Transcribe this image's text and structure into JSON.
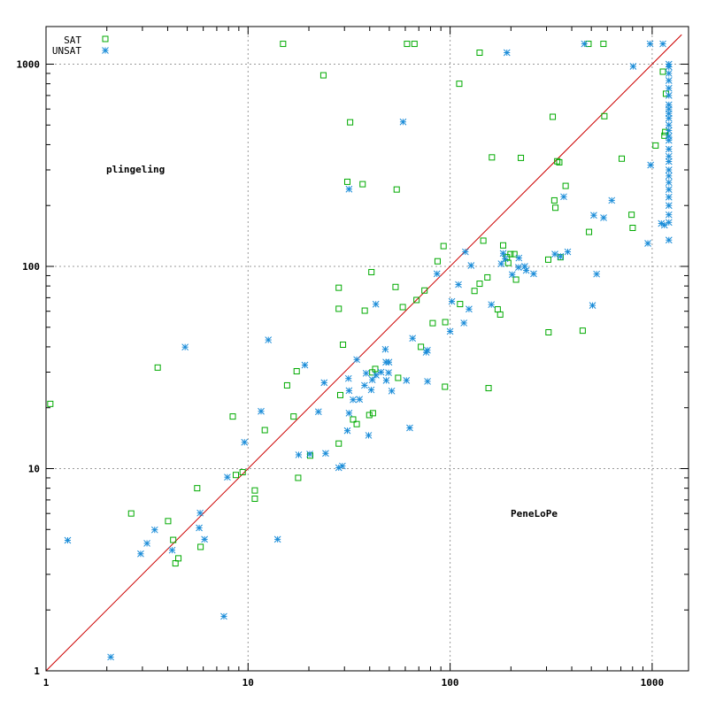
{
  "chart_data": {
    "type": "scatter",
    "title": "",
    "xlabel": "",
    "ylabel": "",
    "x_scale": "log",
    "y_scale": "log",
    "xlim": [
      1,
      1400
    ],
    "ylim": [
      1,
      1500
    ],
    "x_ticks": [
      {
        "value": 1,
        "label": "1"
      },
      {
        "value": 10,
        "label": "10"
      },
      {
        "value": 100,
        "label": "100"
      },
      {
        "value": 1000,
        "label": "1000"
      }
    ],
    "y_ticks": [
      {
        "value": 1,
        "label": "1"
      },
      {
        "value": 10,
        "label": "10"
      },
      {
        "value": 100,
        "label": "100"
      },
      {
        "value": 1000,
        "label": "1000"
      }
    ],
    "grid": true,
    "diagonal": {
      "color": "#cc0000"
    },
    "legend": {
      "position": "top-left"
    },
    "annotations": [
      {
        "text": "plingeling",
        "x": 3.1,
        "y": 290
      },
      {
        "text": "PeneLoPe",
        "x": 260,
        "y": 7.5
      }
    ],
    "series": [
      {
        "name": "SAT",
        "marker": "square",
        "color": "#00aa00",
        "points": [
          [
            1.05,
            20.9
          ],
          [
            2.64,
            6.0
          ],
          [
            3.57,
            31.6
          ],
          [
            4.02,
            5.5
          ],
          [
            4.26,
            4.44
          ],
          [
            4.37,
            3.4
          ],
          [
            4.52,
            3.6
          ],
          [
            5.6,
            8.0
          ],
          [
            5.82,
            4.1
          ],
          [
            8.4,
            18.1
          ],
          [
            8.7,
            9.3
          ],
          [
            9.4,
            9.6
          ],
          [
            10.8,
            7.8
          ],
          [
            10.8,
            7.1
          ],
          [
            12.1,
            15.5
          ],
          [
            15.6,
            25.8
          ],
          [
            16.8,
            18.1
          ],
          [
            17.7,
            9.0
          ],
          [
            17.4,
            30.3
          ],
          [
            20.3,
            11.6
          ],
          [
            28.1,
            61.7
          ],
          [
            28.1,
            78.4
          ],
          [
            28.1,
            13.3
          ],
          [
            28.6,
            23.1
          ],
          [
            29.5,
            41.0
          ],
          [
            31.0,
            262
          ],
          [
            32.0,
            516
          ],
          [
            33.1,
            17.5
          ],
          [
            34.5,
            16.6
          ],
          [
            36.9,
            255
          ],
          [
            37.8,
            60.4
          ],
          [
            39.8,
            18.4
          ],
          [
            40.8,
            93.7
          ],
          [
            41.5,
            18.8
          ],
          [
            42.6,
            31.1
          ],
          [
            41.2,
            29.9
          ],
          [
            53.7,
            79.1
          ],
          [
            54.4,
            240
          ],
          [
            55.3,
            28.1
          ],
          [
            58.3,
            62.9
          ],
          [
            68.2,
            68.2
          ],
          [
            71.7,
            40.0
          ],
          [
            74.7,
            76.0
          ],
          [
            82.0,
            52.4
          ],
          [
            86.7,
            106.0
          ],
          [
            92.8,
            126
          ],
          [
            94.3,
            25.4
          ],
          [
            94.6,
            53.0
          ],
          [
            112,
            65.1
          ],
          [
            111,
            800
          ],
          [
            132,
            75.6
          ],
          [
            140,
            82.1
          ],
          [
            146,
            134
          ],
          [
            153,
            88.2
          ],
          [
            155,
            25.0
          ],
          [
            161,
            346
          ],
          [
            172,
            61.3
          ],
          [
            177,
            57.8
          ],
          [
            183,
            127
          ],
          [
            191,
            111
          ],
          [
            194,
            104
          ],
          [
            199,
            115
          ],
          [
            208,
            115
          ],
          [
            212,
            86.0
          ],
          [
            224,
            344
          ],
          [
            306,
            108
          ],
          [
            307,
            47.2
          ],
          [
            322,
            549
          ],
          [
            328,
            212
          ],
          [
            332,
            195
          ],
          [
            339,
            331
          ],
          [
            347,
            327
          ],
          [
            352,
            111
          ],
          [
            373,
            250
          ],
          [
            453,
            48.1
          ],
          [
            487,
            148
          ],
          [
            580,
            553
          ],
          [
            707,
            341
          ],
          [
            791,
            180
          ],
          [
            801,
            155
          ],
          [
            1040,
            396
          ],
          [
            1130,
            918
          ],
          [
            1160,
            462
          ],
          [
            1170,
            714
          ],
          [
            1150,
            443
          ],
          [
            23.6,
            881
          ],
          [
            14.9,
            1260
          ],
          [
            61.2,
            1260
          ],
          [
            66.6,
            1260
          ],
          [
            140,
            1140
          ],
          [
            484,
            1260
          ],
          [
            574,
            1260
          ]
        ]
      },
      {
        "name": "UNSAT",
        "marker": "asterisk",
        "color": "#1a8cd8",
        "points": [
          [
            1.28,
            4.42
          ],
          [
            2.09,
            1.17
          ],
          [
            2.94,
            3.79
          ],
          [
            3.16,
            4.27
          ],
          [
            3.45,
            4.98
          ],
          [
            4.21,
            3.95
          ],
          [
            4.88,
            39.9
          ],
          [
            5.73,
            5.09
          ],
          [
            5.79,
            6.03
          ],
          [
            6.09,
            4.47
          ],
          [
            7.59,
            1.86
          ],
          [
            7.9,
            9.07
          ],
          [
            9.6,
            13.5
          ],
          [
            11.6,
            19.2
          ],
          [
            12.6,
            43.3
          ],
          [
            14.0,
            4.47
          ],
          [
            17.8,
            11.7
          ],
          [
            19.1,
            32.5
          ],
          [
            20.2,
            11.8
          ],
          [
            22.3,
            19.1
          ],
          [
            24.2,
            11.9
          ],
          [
            23.8,
            26.6
          ],
          [
            28.1,
            10.1
          ],
          [
            29.3,
            10.3
          ],
          [
            31.0,
            15.4
          ],
          [
            31.6,
            18.8
          ],
          [
            31.6,
            24.3
          ],
          [
            31.4,
            27.9
          ],
          [
            31.6,
            241
          ],
          [
            33.1,
            21.9
          ],
          [
            34.5,
            34.6
          ],
          [
            35.6,
            22.0
          ],
          [
            37.7,
            25.8
          ],
          [
            38.4,
            29.6
          ],
          [
            39.5,
            14.6
          ],
          [
            40.7,
            24.5
          ],
          [
            41.2,
            27.5
          ],
          [
            42.9,
            65.0
          ],
          [
            43.0,
            29.0
          ],
          [
            45.5,
            30.0
          ],
          [
            48.1,
            33.6
          ],
          [
            47.8,
            38.9
          ],
          [
            49.8,
            33.6
          ],
          [
            49.6,
            29.8
          ],
          [
            51.4,
            24.2
          ],
          [
            48.3,
            27.3
          ],
          [
            58.5,
            518
          ],
          [
            60.8,
            27.3
          ],
          [
            63.1,
            15.9
          ],
          [
            65.2,
            44.1
          ],
          [
            76.1,
            37.6
          ],
          [
            77.3,
            27.0
          ],
          [
            77.2,
            38.5
          ],
          [
            86.1,
            91.9
          ],
          [
            100,
            47.7
          ],
          [
            102,
            67.1
          ],
          [
            110,
            81.3
          ],
          [
            117,
            52.5
          ],
          [
            119,
            118
          ],
          [
            124,
            61.5
          ],
          [
            127,
            101
          ],
          [
            160,
            64.7
          ],
          [
            179,
            103
          ],
          [
            183,
            116
          ],
          [
            187,
            109
          ],
          [
            203,
            91.1
          ],
          [
            218,
            98.9
          ],
          [
            219,
            110
          ],
          [
            234,
            100
          ],
          [
            238,
            95.5
          ],
          [
            259,
            91.9
          ],
          [
            330,
            115
          ],
          [
            352,
            112
          ],
          [
            365,
            221
          ],
          [
            382,
            118
          ],
          [
            507,
            64.1
          ],
          [
            514,
            179
          ],
          [
            531,
            91.6
          ],
          [
            575,
            174
          ],
          [
            631,
            212
          ],
          [
            805,
            975
          ],
          [
            952,
            130
          ],
          [
            977,
            1260
          ],
          [
            983,
            317
          ],
          [
            1110,
            163
          ],
          [
            1130,
            1260
          ],
          [
            1210,
            1000
          ],
          [
            1210,
            970
          ],
          [
            1210,
            900
          ],
          [
            1210,
            830
          ],
          [
            1210,
            760
          ],
          [
            1210,
            700
          ],
          [
            1210,
            630
          ],
          [
            1210,
            600
          ],
          [
            1210,
            570
          ],
          [
            1210,
            540
          ],
          [
            1210,
            500
          ],
          [
            1210,
            470
          ],
          [
            1210,
            440
          ],
          [
            1210,
            420
          ],
          [
            1210,
            380
          ],
          [
            1210,
            350
          ],
          [
            1210,
            330
          ],
          [
            1210,
            300
          ],
          [
            1210,
            280
          ],
          [
            1210,
            260
          ],
          [
            1210,
            240
          ],
          [
            1210,
            220
          ],
          [
            1210,
            200
          ],
          [
            1210,
            180
          ],
          [
            1210,
            165
          ],
          [
            1210,
            135
          ],
          [
            1150,
            160
          ],
          [
            462,
            1260
          ],
          [
            191,
            1140
          ]
        ]
      }
    ]
  }
}
